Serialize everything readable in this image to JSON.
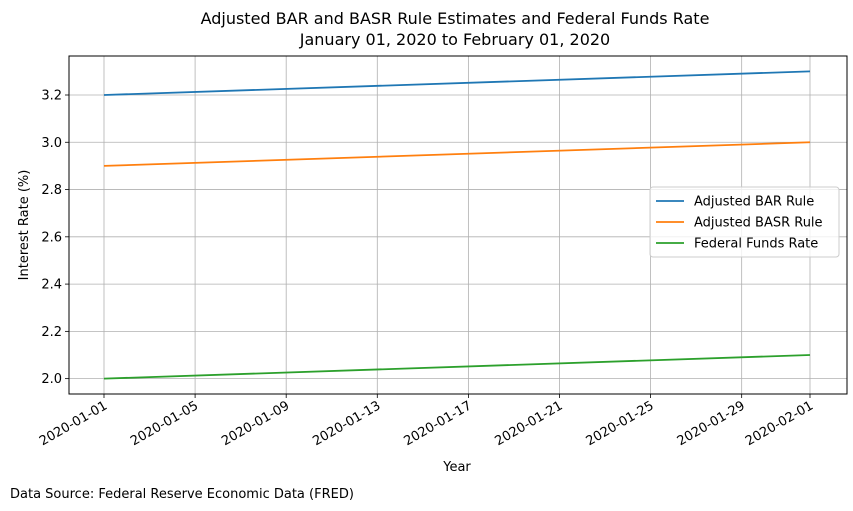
{
  "chart_data": {
    "type": "line",
    "title": "Adjusted BAR and BASR Rule Estimates and Federal Funds Rate",
    "subtitle": "January 01, 2020 to February 01, 2020",
    "xlabel": "Year",
    "ylabel": "Interest Rate (%)",
    "x": [
      "2020-01-01",
      "2020-02-01"
    ],
    "x_ticks": [
      "2020-01-01",
      "2020-01-05",
      "2020-01-09",
      "2020-01-13",
      "2020-01-17",
      "2020-01-21",
      "2020-01-25",
      "2020-01-29",
      "2020-02-01"
    ],
    "y_ticks": [
      "2.0",
      "2.2",
      "2.4",
      "2.6",
      "2.8",
      "3.0",
      "3.2"
    ],
    "ylim": [
      1.935,
      3.365
    ],
    "grid": true,
    "legend_position": "center-right",
    "series": [
      {
        "name": "Adjusted BAR Rule",
        "color": "#1f77b4",
        "values": [
          3.2,
          3.3
        ]
      },
      {
        "name": "Adjusted BASR Rule",
        "color": "#ff7f0e",
        "values": [
          2.9,
          3.0
        ]
      },
      {
        "name": "Federal Funds Rate",
        "color": "#2ca02c",
        "values": [
          2.0,
          2.1
        ]
      }
    ]
  },
  "footer": "Data Source: Federal Reserve Economic Data (FRED)"
}
